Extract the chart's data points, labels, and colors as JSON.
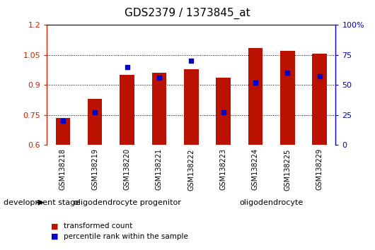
{
  "title": "GDS2379 / 1373845_at",
  "samples": [
    "GSM138218",
    "GSM138219",
    "GSM138220",
    "GSM138221",
    "GSM138222",
    "GSM138223",
    "GSM138224",
    "GSM138225",
    "GSM138229"
  ],
  "transformed_count": [
    0.735,
    0.83,
    0.95,
    0.96,
    0.98,
    0.935,
    1.085,
    1.07,
    1.055
  ],
  "percentile_percent": [
    20,
    27,
    65,
    56,
    70,
    27,
    52,
    60,
    57
  ],
  "ylim_left": [
    0.6,
    1.2
  ],
  "ylim_right": [
    0,
    100
  ],
  "yticks_left": [
    0.6,
    0.75,
    0.9,
    1.05,
    1.2
  ],
  "yticks_right": [
    0,
    25,
    50,
    75,
    100
  ],
  "group1_label": "oligodendrocyte progenitor",
  "group1_count": 5,
  "group2_label": "oligodendrocyte",
  "group2_count": 4,
  "stage_label": "development stage",
  "legend_red": "transformed count",
  "legend_blue": "percentile rank within the sample",
  "bar_color": "#bb1100",
  "dot_color": "#0000cc",
  "bg_color_sample": "#d0d0d0",
  "bg_color_group1": "#99ee99",
  "bg_color_group2": "#33dd33",
  "left_axis_color": "#cc2200",
  "right_axis_color": "#0000cc",
  "grid_color": "#000000",
  "plot_bg": "#ffffff",
  "border_color": "#000000"
}
